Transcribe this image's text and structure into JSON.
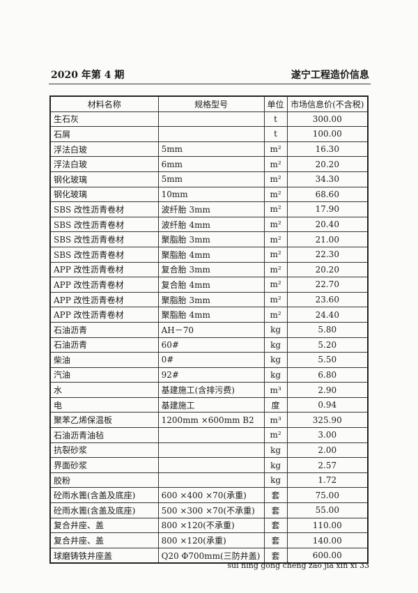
{
  "header": {
    "issue": "2020 年第 4 期",
    "publication": "遂宁工程造价信息"
  },
  "table": {
    "columns": [
      "材料名称",
      "规格型号",
      "单位",
      "市场信息价(不含税)"
    ],
    "rows": [
      [
        "生石灰",
        "",
        "t",
        "300.00"
      ],
      [
        "石屑",
        "",
        "t",
        "100.00"
      ],
      [
        "浮法白玻",
        "5mm",
        "m²",
        "16.30"
      ],
      [
        "浮法白玻",
        "6mm",
        "m²",
        "20.20"
      ],
      [
        "钢化玻璃",
        "5mm",
        "m²",
        "34.30"
      ],
      [
        "钢化玻璃",
        "10mm",
        "m²",
        "68.60"
      ],
      [
        "SBS 改性沥青卷材",
        "波纤胎 3mm",
        "m²",
        "17.90"
      ],
      [
        "SBS 改性沥青卷材",
        "波纤胎 4mm",
        "m²",
        "20.40"
      ],
      [
        "SBS 改性沥青卷材",
        "聚脂胎 3mm",
        "m²",
        "21.00"
      ],
      [
        "SBS 改性沥青卷材",
        "聚脂胎 4mm",
        "m²",
        "22.30"
      ],
      [
        "APP 改性沥青卷材",
        "复合胎 3mm",
        "m²",
        "20.20"
      ],
      [
        "APP 改性沥青卷材",
        "复合胎 4mm",
        "m²",
        "22.70"
      ],
      [
        "APP 改性沥青卷材",
        "聚脂胎 3mm",
        "m²",
        "23.60"
      ],
      [
        "APP 改性沥青卷材",
        "聚脂胎 4mm",
        "m²",
        "24.40"
      ],
      [
        "石油沥青",
        "AH－70",
        "kg",
        "5.80"
      ],
      [
        "石油沥青",
        "60#",
        "kg",
        "5.20"
      ],
      [
        "柴油",
        "0#",
        "kg",
        "5.50"
      ],
      [
        "汽油",
        "92#",
        "kg",
        "6.80"
      ],
      [
        "水",
        "基建施工(含排污费)",
        "m³",
        "2.90"
      ],
      [
        "电",
        "基建施工",
        "度",
        "0.94"
      ],
      [
        "聚苯乙烯保温板",
        "1200mm ×600mm B2",
        "m³",
        "325.90"
      ],
      [
        "石油沥青油毡",
        "",
        "m²",
        "3.00"
      ],
      [
        "抗裂砂浆",
        "",
        "kg",
        "2.00"
      ],
      [
        "界面砂浆",
        "",
        "kg",
        "2.57"
      ],
      [
        "胶粉",
        "",
        "kg",
        "1.72"
      ],
      [
        "砼雨水篦(含盖及底座)",
        "600 ×400 ×70(承重)",
        "套",
        "75.00"
      ],
      [
        "砼雨水篦(含盖及底座)",
        "500 ×300 ×70(不承重)",
        "套",
        "55.00"
      ],
      [
        "复合井座、盖",
        "800 ×120(不承重)",
        "套",
        "110.00"
      ],
      [
        "复合井座、盖",
        "800 ×120(承重)",
        "套",
        "140.00"
      ],
      [
        "球磨铸铁井座盖",
        "Q20 Φ700mm(三防井盖)",
        "套",
        "600.00"
      ]
    ]
  },
  "footer": {
    "page_label": "sui ning gong cheng zao jia xin xi 33"
  }
}
